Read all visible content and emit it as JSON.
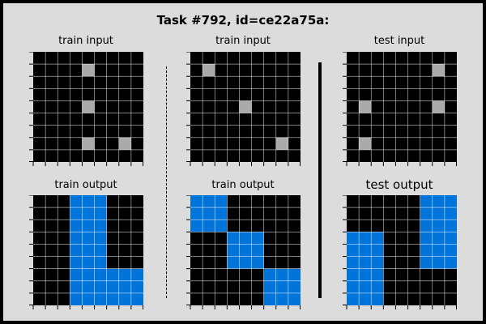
{
  "title": "Task #792, id=ce22a75a:",
  "colors": {
    "0": "#000000",
    "1": "#0074d9",
    "5": "#aaaaaa",
    "grid_line": "#ffffff"
  },
  "panels": [
    {
      "name": "train-input-1",
      "label": "train input",
      "grid": [
        [
          0,
          0,
          0,
          0,
          0,
          0,
          0,
          0,
          0
        ],
        [
          0,
          0,
          0,
          0,
          5,
          0,
          0,
          0,
          0
        ],
        [
          0,
          0,
          0,
          0,
          0,
          0,
          0,
          0,
          0
        ],
        [
          0,
          0,
          0,
          0,
          0,
          0,
          0,
          0,
          0
        ],
        [
          0,
          0,
          0,
          0,
          5,
          0,
          0,
          0,
          0
        ],
        [
          0,
          0,
          0,
          0,
          0,
          0,
          0,
          0,
          0
        ],
        [
          0,
          0,
          0,
          0,
          0,
          0,
          0,
          0,
          0
        ],
        [
          0,
          0,
          0,
          0,
          5,
          0,
          0,
          5,
          0
        ],
        [
          0,
          0,
          0,
          0,
          0,
          0,
          0,
          0,
          0
        ]
      ]
    },
    {
      "name": "train-input-2",
      "label": "train input",
      "grid": [
        [
          0,
          0,
          0,
          0,
          0,
          0,
          0,
          0,
          0
        ],
        [
          0,
          5,
          0,
          0,
          0,
          0,
          0,
          0,
          0
        ],
        [
          0,
          0,
          0,
          0,
          0,
          0,
          0,
          0,
          0
        ],
        [
          0,
          0,
          0,
          0,
          0,
          0,
          0,
          0,
          0
        ],
        [
          0,
          0,
          0,
          0,
          5,
          0,
          0,
          0,
          0
        ],
        [
          0,
          0,
          0,
          0,
          0,
          0,
          0,
          0,
          0
        ],
        [
          0,
          0,
          0,
          0,
          0,
          0,
          0,
          0,
          0
        ],
        [
          0,
          0,
          0,
          0,
          0,
          0,
          0,
          5,
          0
        ],
        [
          0,
          0,
          0,
          0,
          0,
          0,
          0,
          0,
          0
        ]
      ]
    },
    {
      "name": "test-input",
      "label": "test input",
      "grid": [
        [
          0,
          0,
          0,
          0,
          0,
          0,
          0,
          0,
          0
        ],
        [
          0,
          0,
          0,
          0,
          0,
          0,
          0,
          5,
          0
        ],
        [
          0,
          0,
          0,
          0,
          0,
          0,
          0,
          0,
          0
        ],
        [
          0,
          0,
          0,
          0,
          0,
          0,
          0,
          0,
          0
        ],
        [
          0,
          5,
          0,
          0,
          0,
          0,
          0,
          5,
          0
        ],
        [
          0,
          0,
          0,
          0,
          0,
          0,
          0,
          0,
          0
        ],
        [
          0,
          0,
          0,
          0,
          0,
          0,
          0,
          0,
          0
        ],
        [
          0,
          5,
          0,
          0,
          0,
          0,
          0,
          0,
          0
        ],
        [
          0,
          0,
          0,
          0,
          0,
          0,
          0,
          0,
          0
        ]
      ]
    },
    {
      "name": "train-output-1",
      "label": "train output",
      "grid": [
        [
          0,
          0,
          0,
          1,
          1,
          1,
          0,
          0,
          0
        ],
        [
          0,
          0,
          0,
          1,
          1,
          1,
          0,
          0,
          0
        ],
        [
          0,
          0,
          0,
          1,
          1,
          1,
          0,
          0,
          0
        ],
        [
          0,
          0,
          0,
          1,
          1,
          1,
          0,
          0,
          0
        ],
        [
          0,
          0,
          0,
          1,
          1,
          1,
          0,
          0,
          0
        ],
        [
          0,
          0,
          0,
          1,
          1,
          1,
          0,
          0,
          0
        ],
        [
          0,
          0,
          0,
          1,
          1,
          1,
          1,
          1,
          1
        ],
        [
          0,
          0,
          0,
          1,
          1,
          1,
          1,
          1,
          1
        ],
        [
          0,
          0,
          0,
          1,
          1,
          1,
          1,
          1,
          1
        ]
      ]
    },
    {
      "name": "train-output-2",
      "label": "train output",
      "grid": [
        [
          1,
          1,
          1,
          0,
          0,
          0,
          0,
          0,
          0
        ],
        [
          1,
          1,
          1,
          0,
          0,
          0,
          0,
          0,
          0
        ],
        [
          1,
          1,
          1,
          0,
          0,
          0,
          0,
          0,
          0
        ],
        [
          0,
          0,
          0,
          1,
          1,
          1,
          0,
          0,
          0
        ],
        [
          0,
          0,
          0,
          1,
          1,
          1,
          0,
          0,
          0
        ],
        [
          0,
          0,
          0,
          1,
          1,
          1,
          0,
          0,
          0
        ],
        [
          0,
          0,
          0,
          0,
          0,
          0,
          1,
          1,
          1
        ],
        [
          0,
          0,
          0,
          0,
          0,
          0,
          1,
          1,
          1
        ],
        [
          0,
          0,
          0,
          0,
          0,
          0,
          1,
          1,
          1
        ]
      ]
    },
    {
      "name": "test-output",
      "label": "test output",
      "grid": [
        [
          0,
          0,
          0,
          0,
          0,
          0,
          1,
          1,
          1
        ],
        [
          0,
          0,
          0,
          0,
          0,
          0,
          1,
          1,
          1
        ],
        [
          0,
          0,
          0,
          0,
          0,
          0,
          1,
          1,
          1
        ],
        [
          1,
          1,
          1,
          0,
          0,
          0,
          1,
          1,
          1
        ],
        [
          1,
          1,
          1,
          0,
          0,
          0,
          1,
          1,
          1
        ],
        [
          1,
          1,
          1,
          0,
          0,
          0,
          1,
          1,
          1
        ],
        [
          1,
          1,
          1,
          0,
          0,
          0,
          0,
          0,
          0
        ],
        [
          1,
          1,
          1,
          0,
          0,
          0,
          0,
          0,
          0
        ],
        [
          1,
          1,
          1,
          0,
          0,
          0,
          0,
          0,
          0
        ]
      ]
    }
  ]
}
